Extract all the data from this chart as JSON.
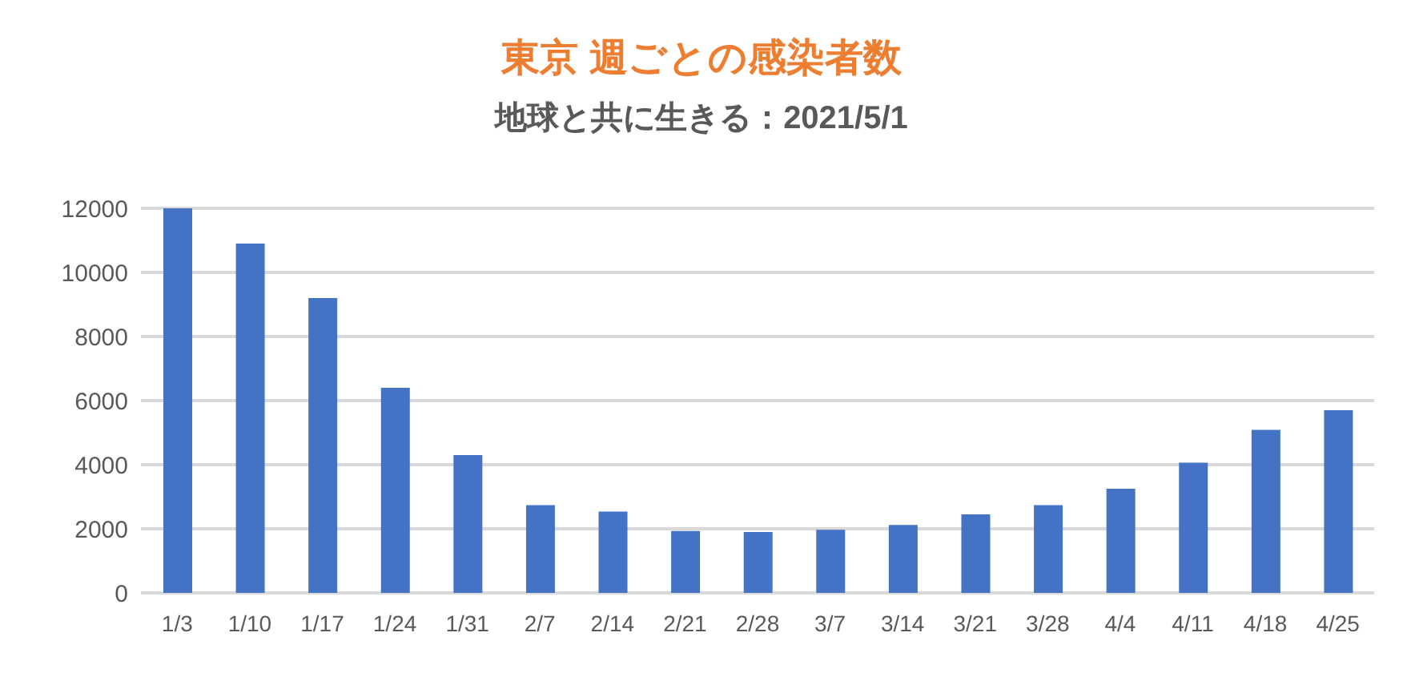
{
  "chart_data": {
    "type": "bar",
    "title": "東京 週ごとの感染者数",
    "subtitle": "地球と共に生きる：2021/5/1",
    "categories": [
      "1/3",
      "1/10",
      "1/17",
      "1/24",
      "1/31",
      "2/7",
      "2/14",
      "2/21",
      "2/28",
      "3/7",
      "3/14",
      "3/21",
      "3/28",
      "4/4",
      "4/11",
      "4/18",
      "4/25"
    ],
    "series": [
      {
        "color": "#4472c4",
        "values": [
          12000,
          10900,
          9200,
          6400,
          4300,
          2740,
          2540,
          1930,
          1900,
          1970,
          2120,
          2450,
          2740,
          3250,
          4060,
          5090,
          5700
        ]
      }
    ],
    "ylim": [
      0,
      12000
    ],
    "yticks": [
      0,
      2000,
      4000,
      6000,
      8000,
      10000,
      12000
    ],
    "grid": "y",
    "legend": false
  }
}
